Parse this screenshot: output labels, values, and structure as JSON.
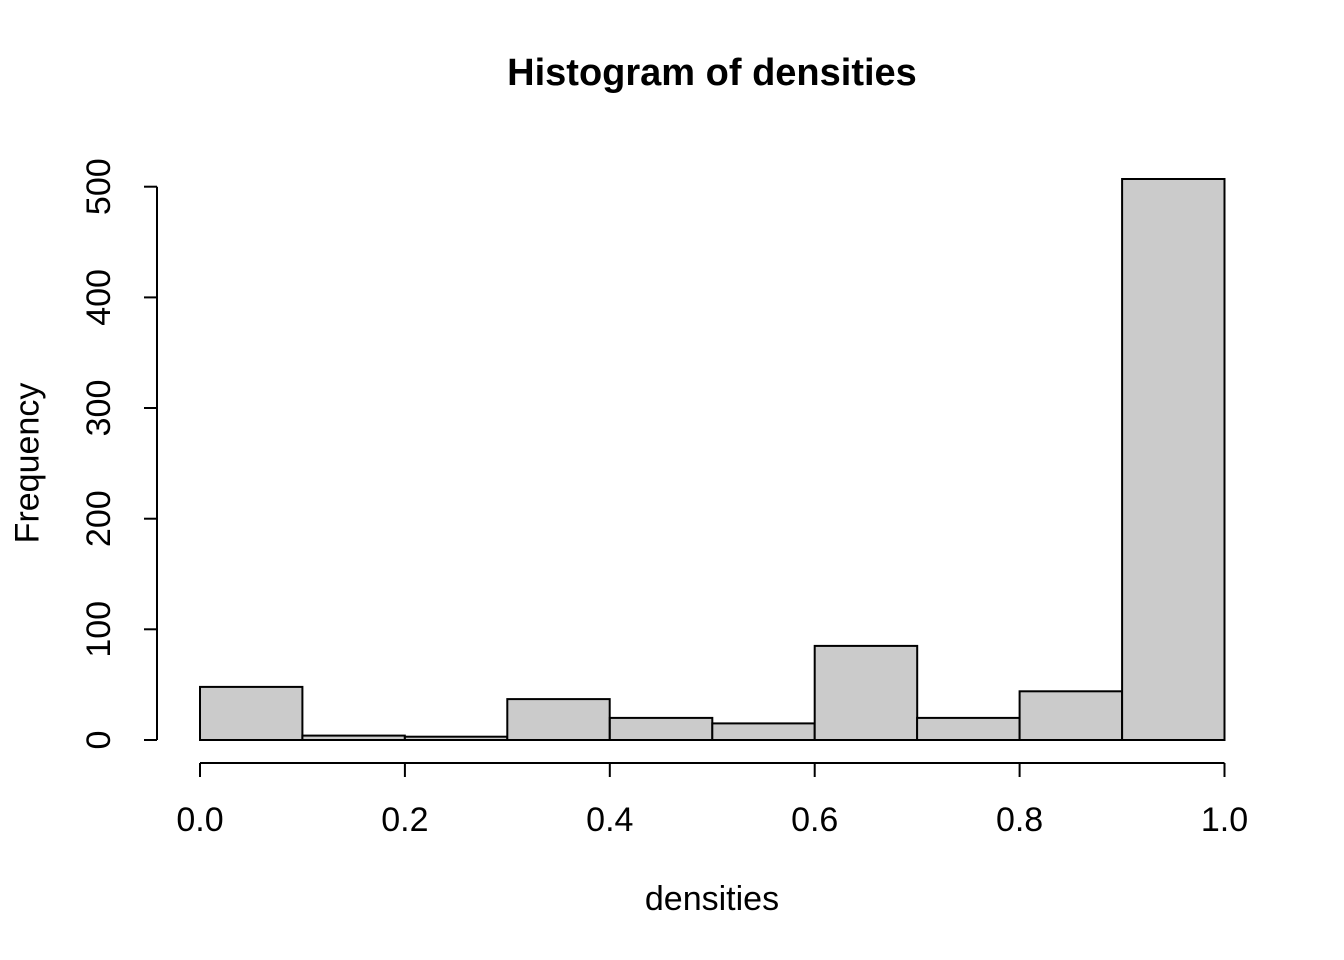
{
  "figure": {
    "background": "#ffffff"
  },
  "chart_data": {
    "type": "bar",
    "subtype": "histogram",
    "title": "Histogram of densities",
    "xlabel": "densities",
    "ylabel": "Frequency",
    "bin_width": 0.1,
    "bin_edges": [
      0.0,
      0.1,
      0.2,
      0.3,
      0.4,
      0.5,
      0.6,
      0.7,
      0.8,
      0.9,
      1.0
    ],
    "values": [
      48,
      4,
      3,
      37,
      20,
      15,
      85,
      20,
      44,
      507
    ],
    "x_tick_values": [
      0.0,
      0.2,
      0.4,
      0.6,
      0.8,
      1.0
    ],
    "x_tick_labels": [
      "0.0",
      "0.2",
      "0.4",
      "0.6",
      "0.8",
      "1.0"
    ],
    "y_tick_values": [
      0,
      100,
      200,
      300,
      400,
      500
    ],
    "y_tick_labels": [
      "0",
      "100",
      "200",
      "300",
      "400",
      "500"
    ],
    "xlim": [
      0.0,
      1.0
    ],
    "ylim": [
      0,
      500
    ],
    "grid": false,
    "legend_position": "none",
    "bar_fill": "#cbcbcb",
    "bar_stroke": "#000000",
    "axis_color": "#000000",
    "text_color": "#000000"
  }
}
